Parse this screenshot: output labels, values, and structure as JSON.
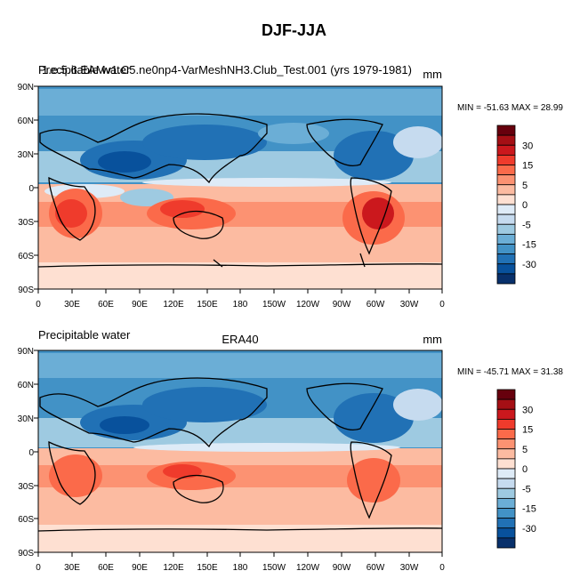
{
  "figure": {
    "title": "DJF-JJA"
  },
  "axes": {
    "lat_labels": [
      "90N",
      "60N",
      "30N",
      "0",
      "30S",
      "60S",
      "90S"
    ],
    "lon_labels": [
      "0",
      "30E",
      "60E",
      "90E",
      "120E",
      "150E",
      "180",
      "150W",
      "120W",
      "90W",
      "60W",
      "30W",
      "0"
    ]
  },
  "colorbar": {
    "levels": [
      "30",
      "15",
      "5",
      "0",
      "-5",
      "-15",
      "-30"
    ],
    "colors": [
      "#67000d",
      "#a50f15",
      "#cb181d",
      "#ef3b2c",
      "#fb6a4a",
      "#fc9272",
      "#fcbba1",
      "#fee0d2",
      "#deebf7",
      "#c6dbef",
      "#9ecae1",
      "#6baed6",
      "#4292c6",
      "#2171b5",
      "#08519c",
      "#08306b"
    ]
  },
  "panels": [
    {
      "overlay_left_1": "Precipitable water",
      "overlay_left_2": "1.e.5.6.EAMv1.C5.ne0np4-VarMeshNH3.Club_Test.001 (yrs 1979-1981)",
      "center_text": "",
      "units": "mm",
      "stats": "MIN = -51.63 MAX =  28.99"
    },
    {
      "overlay_left_1": "Precipitable water",
      "overlay_left_2": "",
      "center_text": "ERA40",
      "units": "mm",
      "stats": "MIN = -45.71 MAX =  31.38"
    }
  ]
}
